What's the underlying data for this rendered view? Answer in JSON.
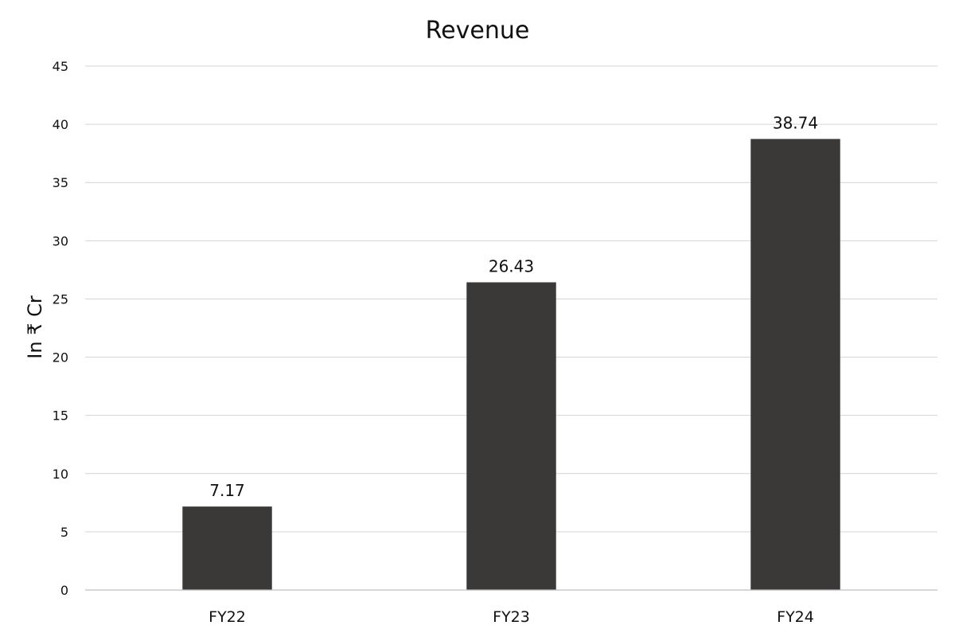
{
  "chart_data": {
    "type": "bar",
    "title": "Revenue",
    "ylabel": "In ₹ Cr",
    "xlabel": "",
    "categories": [
      "FY22",
      "FY23",
      "FY24"
    ],
    "values": [
      7.17,
      26.43,
      38.74
    ],
    "data_labels": [
      "7.17",
      "26.43",
      "38.74"
    ],
    "ylim": [
      0,
      45
    ],
    "yticks": [
      "0",
      "5",
      "10",
      "15",
      "20",
      "25",
      "30",
      "35",
      "40",
      "45"
    ],
    "grid": true,
    "legend": "none",
    "colors": {
      "bar": "#3b3838"
    }
  }
}
